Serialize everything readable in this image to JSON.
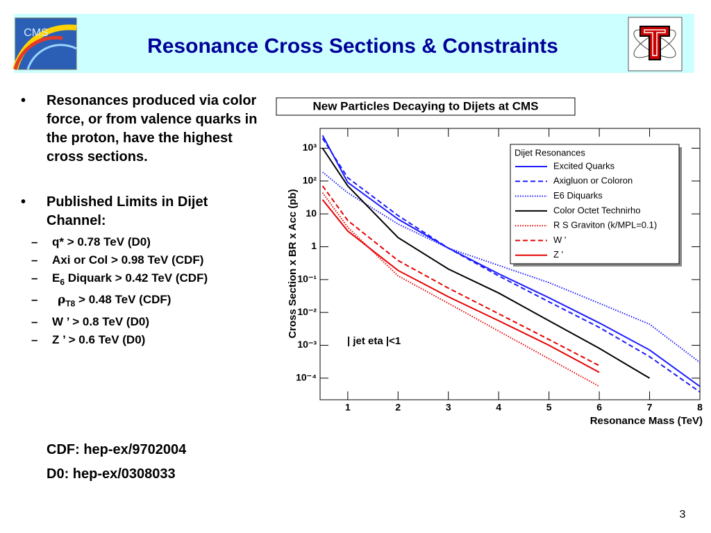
{
  "header": {
    "title": "Resonance Cross Sections & Constraints",
    "cms_logo_text": "CMS"
  },
  "bullets": [
    {
      "text": "Resonances produced via color force, or from valence quarks in the proton,  have the highest cross sections."
    },
    {
      "text": "Published Limits in Dijet Channel:",
      "items": [
        {
          "pre": "q*  > 0.78 TeV (D0)"
        },
        {
          "pre": "Axi or Col > 0.98 TeV (CDF)"
        },
        {
          "pre": "E",
          "sub": "6",
          "post": " Diquark > 0.42 TeV (CDF)"
        },
        {
          "pre": "ρ",
          "sub": "T8",
          "post": " > 0.48 TeV (CDF)"
        },
        {
          "pre": "W ’ > 0.8 TeV  (D0)"
        },
        {
          "pre": "Z ’ > 0.6 TeV   (D0)"
        }
      ]
    }
  ],
  "references": [
    "CDF: hep-ex/9702004",
    "D0: hep-ex/0308033"
  ],
  "page_number": "3",
  "chart_data": {
    "type": "line",
    "title": "New Particles Decaying to Dijets at CMS",
    "x_label": "Resonance Mass (TeV)",
    "y_label": "Cross Section x BR x Acc (pb)",
    "annotation": "| jet eta |<1",
    "legend_title": "Dijet Resonances",
    "legend": "upper right",
    "log_y": true,
    "xlim": [
      0.45,
      8
    ],
    "ylim": [
      2.2e-05,
      4000
    ],
    "xticks": [
      1,
      2,
      3,
      4,
      5,
      6,
      7,
      8
    ],
    "yticks": [
      {
        "value": 0.0001,
        "label": "10⁻⁴"
      },
      {
        "value": 0.001,
        "label": "10⁻³"
      },
      {
        "value": 0.01,
        "label": "10⁻²"
      },
      {
        "value": 0.1,
        "label": "10⁻¹"
      },
      1,
      10,
      {
        "value": 100,
        "label": "10²"
      },
      {
        "value": 1000,
        "label": "10³"
      }
    ],
    "x": [
      0.5,
      1,
      2,
      3,
      4,
      5,
      6,
      7,
      8
    ],
    "series": [
      {
        "name": "Excited Quarks",
        "color": "#1a1aff",
        "style": "solid",
        "values": [
          2450,
          91,
          6.9,
          0.91,
          0.15,
          0.028,
          0.0048,
          0.00072,
          5.6e-05
        ]
      },
      {
        "name": "Axigluon or Coloron",
        "color": "#1a1aff",
        "style": "dashed",
        "values": [
          2000,
          126,
          8.9,
          0.91,
          0.13,
          0.021,
          0.0035,
          0.00045,
          3.8e-05
        ]
      },
      {
        "name": "E6 Diquarks",
        "color": "#1a1aff",
        "style": "dotted",
        "values": [
          186,
          44,
          4.9,
          0.91,
          0.27,
          0.081,
          0.019,
          0.0044,
          0.0003
        ]
      },
      {
        "name": "Color Octet Technirho",
        "color": "#000000",
        "style": "solid",
        "values": [
          1000,
          71,
          1.9,
          0.21,
          0.039,
          0.0056,
          0.00081,
          0.0001,
          null
        ]
      },
      {
        "name": "R S Graviton (k/MPL=0.1)",
        "color": "#e60000",
        "style": "dotted",
        "values": [
          44,
          3.9,
          0.13,
          0.019,
          0.0027,
          0.00039,
          5.6e-05,
          null,
          null
        ]
      },
      {
        "name": "W '",
        "color": "#e60000",
        "style": "dashed",
        "values": [
          71,
          6.3,
          0.38,
          0.055,
          0.0091,
          0.0015,
          0.00024,
          null,
          null
        ]
      },
      {
        "name": "Z '",
        "color": "#e60000",
        "style": "solid",
        "values": [
          27,
          3.0,
          0.19,
          0.03,
          0.0056,
          0.001,
          0.00015,
          null,
          null
        ]
      }
    ]
  }
}
